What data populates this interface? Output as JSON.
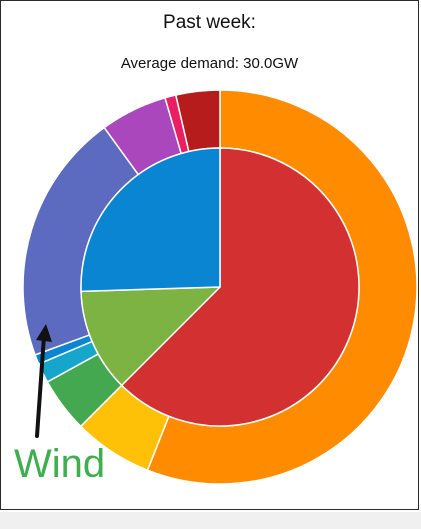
{
  "chart_data": {
    "type": "pie",
    "title": "Past week:",
    "subtitle": "Average demand: 30.0GW",
    "inner_ring": [
      {
        "value": 62.5,
        "color": "#d33131"
      },
      {
        "value": 12.0,
        "color": "#7cb342"
      },
      {
        "value": 25.5,
        "color": "#0a85d2"
      }
    ],
    "outer_ring": [
      {
        "value": 56.0,
        "color": "#ff8c00"
      },
      {
        "value": 6.5,
        "color": "#ffc107"
      },
      {
        "value": 4.5,
        "color": "#43a850"
      },
      {
        "value": 1.6,
        "color": "#16a6cc"
      },
      {
        "value": 0.8,
        "color": "#0a85d2"
      },
      {
        "value": 20.6,
        "color": "#5c6bc0"
      },
      {
        "value": 5.5,
        "color": "#ab47bc"
      },
      {
        "value": 0.9,
        "color": "#e91e63"
      },
      {
        "value": 3.6,
        "color": "#b71c1c"
      }
    ],
    "annotation": "Wind"
  }
}
